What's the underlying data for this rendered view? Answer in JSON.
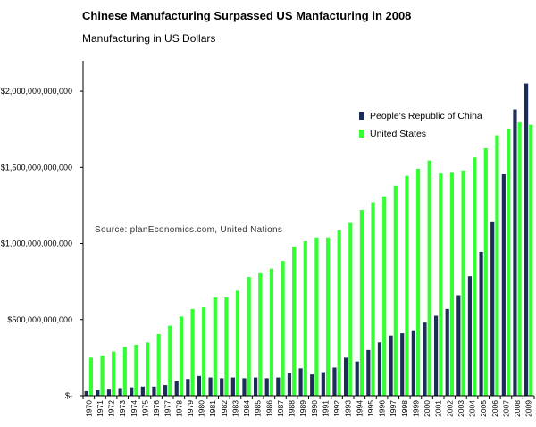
{
  "header": {
    "title": "Chinese Manufacturing Surpassed US Manfacturing in 2008",
    "subtitle": "Manufacturing in US Dollars"
  },
  "annotation": {
    "source": "Source: planEconomics.com, United Nations"
  },
  "colors": {
    "china": "#1c2d5a",
    "us": "#33ff33",
    "axis": "#000000"
  },
  "chart_data": {
    "type": "bar",
    "title": "Chinese Manufacturing Surpassed US Manfacturing in 2008",
    "subtitle": "Manufacturing in US Dollars",
    "xlabel": "",
    "ylabel": "",
    "ylim": [
      0,
      2200000000000
    ],
    "yticks": [
      0,
      500000000000,
      1000000000000,
      1500000000000,
      2000000000000
    ],
    "ytick_labels": [
      "$-",
      "$500,000,000,000",
      "$1,000,000,000,000",
      "$1,500,000,000,000",
      "$2,000,000,000,000"
    ],
    "grid": false,
    "legend_position": "top-right",
    "categories": [
      "1970",
      "1971",
      "1972",
      "1973",
      "1974",
      "1975",
      "1976",
      "1977",
      "1978",
      "1979",
      "1980",
      "1981",
      "1982",
      "1983",
      "1984",
      "1985",
      "1986",
      "1987",
      "1988",
      "1989",
      "1990",
      "1991",
      "1992",
      "1993",
      "1994",
      "1995",
      "1996",
      "1997",
      "1998",
      "1999",
      "2000",
      "2001",
      "2002",
      "2003",
      "2004",
      "2005",
      "2006",
      "2007",
      "2008",
      "2009"
    ],
    "series": [
      {
        "name": "People's Republic of China",
        "color": "#1c2d5a",
        "values": [
          30000000000,
          35000000000,
          40000000000,
          50000000000,
          55000000000,
          60000000000,
          60000000000,
          70000000000,
          95000000000,
          110000000000,
          130000000000,
          120000000000,
          115000000000,
          120000000000,
          115000000000,
          120000000000,
          115000000000,
          120000000000,
          150000000000,
          180000000000,
          140000000000,
          155000000000,
          185000000000,
          250000000000,
          225000000000,
          300000000000,
          350000000000,
          395000000000,
          410000000000,
          430000000000,
          480000000000,
          525000000000,
          570000000000,
          660000000000,
          785000000000,
          945000000000,
          1145000000000,
          1455000000000,
          1880000000000,
          2050000000000
        ]
      },
      {
        "name": "United States",
        "color": "#33ff33",
        "values": [
          250000000000,
          265000000000,
          290000000000,
          320000000000,
          335000000000,
          350000000000,
          405000000000,
          460000000000,
          520000000000,
          570000000000,
          580000000000,
          645000000000,
          645000000000,
          690000000000,
          780000000000,
          805000000000,
          835000000000,
          885000000000,
          980000000000,
          1015000000000,
          1040000000000,
          1040000000000,
          1085000000000,
          1135000000000,
          1220000000000,
          1270000000000,
          1310000000000,
          1380000000000,
          1445000000000,
          1490000000000,
          1545000000000,
          1460000000000,
          1465000000000,
          1480000000000,
          1565000000000,
          1625000000000,
          1710000000000,
          1755000000000,
          1795000000000,
          1780000000000
        ]
      }
    ]
  }
}
